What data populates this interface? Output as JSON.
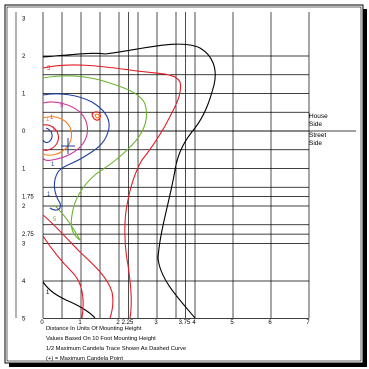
{
  "chart_data": {
    "type": "isofootcandle",
    "x_ticks": [
      {
        "v": 0,
        "label": "0"
      },
      {
        "v": 1,
        "label": "1"
      },
      {
        "v": 2,
        "label": "2"
      },
      {
        "v": 2.25,
        "label": "2.25"
      },
      {
        "v": 3,
        "label": "3"
      },
      {
        "v": 3.75,
        "label": "3.75"
      },
      {
        "v": 4,
        "label": "4"
      },
      {
        "v": 5,
        "label": "5"
      },
      {
        "v": 6,
        "label": "6"
      },
      {
        "v": 7,
        "label": "7"
      }
    ],
    "y_ticks": [
      {
        "v": 3,
        "label": "3"
      },
      {
        "v": 2,
        "label": "2"
      },
      {
        "v": 1,
        "label": "1"
      },
      {
        "v": 0,
        "label": "0"
      },
      {
        "v": -1,
        "label": "1"
      },
      {
        "v": -1.75,
        "label": "1.75"
      },
      {
        "v": -2,
        "label": "2"
      },
      {
        "v": -2.75,
        "label": "2.75"
      },
      {
        "v": -3,
        "label": "3"
      },
      {
        "v": -4,
        "label": "4"
      },
      {
        "v": -5,
        "label": "5"
      }
    ],
    "side_labels": {
      "house_top": "House",
      "house_bottom": "Side",
      "street_top": "Street",
      "street_bottom": "Side"
    },
    "level_labels": [
      "5",
      "1",
      "1",
      "1",
      "5",
      "5",
      "1",
      "1",
      "1"
    ],
    "contour_colors": [
      "#000000",
      "#e31b23",
      "#6ab42d",
      "#1f3f9c",
      "#cc3399",
      "#f58220"
    ],
    "max_candela_marker": "+",
    "notes": [
      "Distance In Units Of Mounting Height",
      "Values Based On 10 Foot Mounting Height",
      "1/2 Maximum Candela Trace Shown As Dashed Curve",
      "(+) = Maximum Candela Point"
    ]
  }
}
